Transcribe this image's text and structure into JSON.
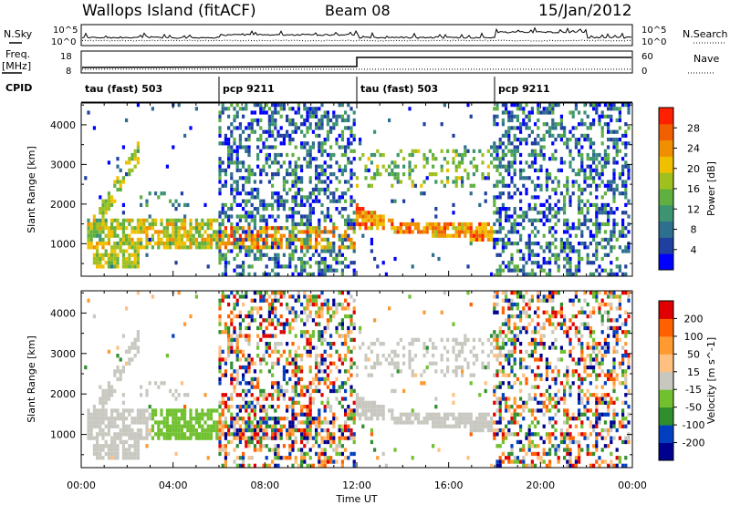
{
  "header": {
    "station": "Wallops Island (fitACF)",
    "beam": "Beam 08",
    "date": "15/Jan/2012"
  },
  "aux_labels": {
    "nsky": "N.Sky",
    "nsearch": "N.Search",
    "freq_line1": "Freq.",
    "freq_line2": "[MHz]",
    "nave": "Nave",
    "cpid": "CPID",
    "noise_tick_top": "10^5",
    "noise_tick_bottom": "10^0",
    "freq_tick_top": "18",
    "freq_tick_bottom": "8",
    "nave_tick_top": "60",
    "nave_tick_bottom": "0"
  },
  "cpid_segments": [
    {
      "label": "tau (fast) 503",
      "start_hour": 0
    },
    {
      "label": "pcp 9211",
      "start_hour": 6
    },
    {
      "label": "tau (fast) 503",
      "start_hour": 12
    },
    {
      "label": "pcp 9211",
      "start_hour": 18
    }
  ],
  "chart_data": [
    {
      "type": "heatmap",
      "quantity": "Power",
      "ylabel": "Slant Range [km]",
      "xlabel": "Time UT",
      "xlim": [
        "00:00",
        "24:00"
      ],
      "ylim": [
        180,
        4550
      ],
      "xticks": [
        "00:00",
        "04:00",
        "08:00",
        "12:00",
        "16:00",
        "20:00",
        "00:00"
      ],
      "yticks": [
        "1000",
        "2000",
        "3000",
        "4000"
      ],
      "colorbar": {
        "label": "Power [dB]",
        "ticks": [
          "4",
          "8",
          "12",
          "16",
          "20",
          "24",
          "28"
        ],
        "range": [
          0,
          32
        ]
      },
      "features": [
        {
          "desc": "strong echo band descending",
          "hours": [
            12.3,
            18.0
          ],
          "range_km": [
            1000,
            1600
          ],
          "power_db": 26
        },
        {
          "desc": "echo band",
          "hours": [
            1.0,
            6.0
          ],
          "range_km": [
            900,
            1600
          ],
          "power_db": 22
        },
        {
          "desc": "ascending echo arc",
          "hours": [
            0.3,
            2.6
          ],
          "range_km": [
            1200,
            3500
          ],
          "power_db": 20
        },
        {
          "desc": "horizontal band",
          "hours": [
            6.0,
            12.0
          ],
          "range_km": [
            1000,
            1050
          ],
          "power_db": 28
        }
      ]
    },
    {
      "type": "heatmap",
      "quantity": "Velocity",
      "ylabel": "Slant Range [km]",
      "xlabel": "Time UT",
      "xlim": [
        "00:00",
        "24:00"
      ],
      "ylim": [
        180,
        4550
      ],
      "xticks": [
        "00:00",
        "04:00",
        "08:00",
        "12:00",
        "16:00",
        "20:00",
        "00:00"
      ],
      "yticks": [
        "1000",
        "2000",
        "3000",
        "4000"
      ],
      "colorbar": {
        "label": "Velocity [m s^-1]",
        "ticks": [
          "200",
          "100",
          "50",
          "15",
          "-15",
          "-50",
          "-100",
          "-200"
        ],
        "range": [
          -250,
          250
        ]
      }
    }
  ],
  "colors": {
    "power_scale": [
      "#0000ff",
      "#2040a0",
      "#2e6e8e",
      "#3c9470",
      "#60b040",
      "#a0c020",
      "#f0c000",
      "#f09000",
      "#f06000",
      "#ff2000"
    ],
    "velocity_scale": [
      "#e00000",
      "#ff6000",
      "#ff9a30",
      "#ffc080",
      "#c8c8c0",
      "#70c030",
      "#2f8f2f",
      "#0040c0",
      "#00008f"
    ],
    "ground_scatter": "#c8c8c0"
  }
}
